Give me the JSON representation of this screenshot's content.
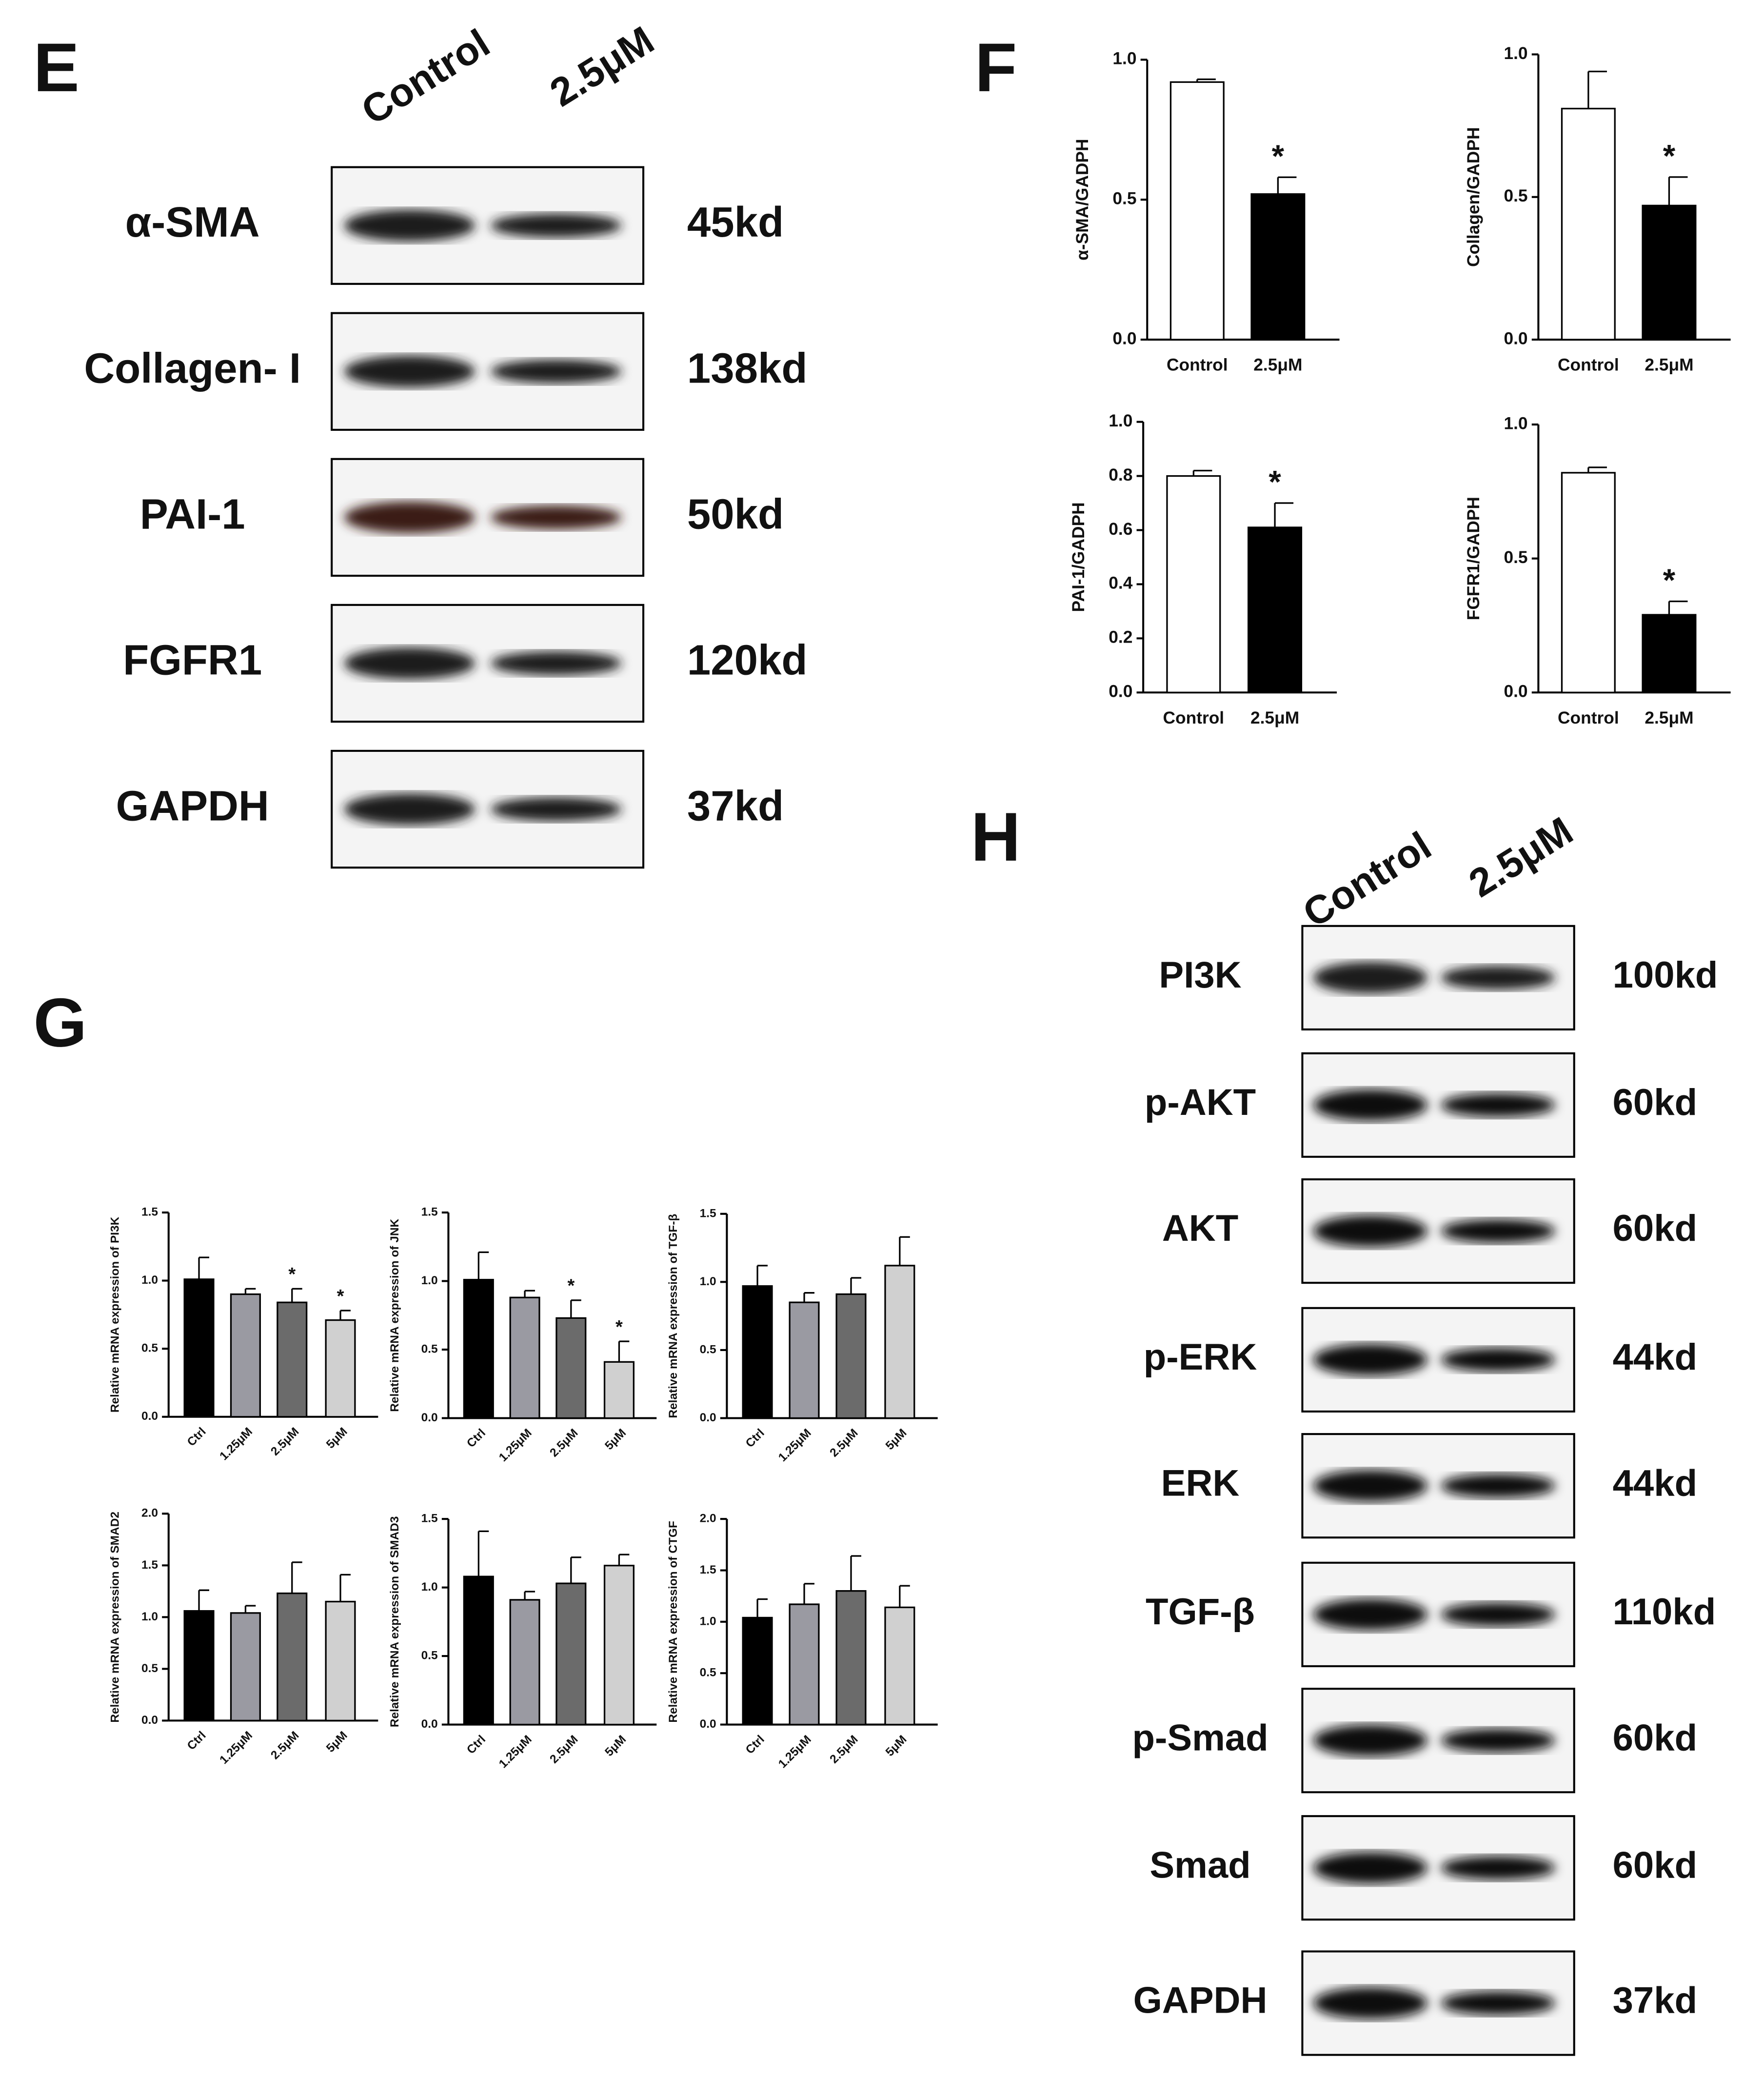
{
  "panel_labels": [
    "E",
    "F",
    "G",
    "H"
  ],
  "blots": [
    {
      "lanes": [
        "Control",
        "2.5μM"
      ],
      "rows": [
        {
          "protein": "α-SMA",
          "size": "45kd"
        },
        {
          "protein": "Collagen- I",
          "size": "138kd"
        },
        {
          "protein": "PAI-1",
          "size": "50kd"
        },
        {
          "protein": "FGFR1",
          "size": "120kd"
        },
        {
          "protein": "GAPDH",
          "size": "37kd"
        }
      ]
    },
    {
      "lanes": [
        "Control",
        "2.5μM"
      ],
      "rows": [
        {
          "protein": "PI3K",
          "size": "100kd"
        },
        {
          "protein": "p-AKT",
          "size": "60kd"
        },
        {
          "protein": "AKT",
          "size": "60kd"
        },
        {
          "protein": "p-ERK",
          "size": "44kd"
        },
        {
          "protein": "ERK",
          "size": "44kd"
        },
        {
          "protein": "TGF-β",
          "size": "110kd"
        },
        {
          "protein": "p-Smad",
          "size": "60kd"
        },
        {
          "protein": "Smad",
          "size": "60kd"
        },
        {
          "protein": "GAPDH",
          "size": "37kd"
        }
      ]
    }
  ],
  "chart_data": [
    {
      "type": "bar",
      "ylabel": "α-SMA/GADPH",
      "categories": [
        "Control",
        "2.5μM"
      ],
      "values": [
        0.92,
        0.52
      ],
      "errors": [
        0.01,
        0.06
      ],
      "colors": [
        "#ffffff",
        "#000000"
      ],
      "markers": [
        null,
        "*"
      ],
      "ylim": [
        0,
        1.0
      ],
      "yticks": [
        {
          "value": 0,
          "label": "0.0"
        },
        0.5,
        {
          "value": 1,
          "label": "1.0"
        }
      ]
    },
    {
      "type": "bar",
      "ylabel": "Collagen/GADPH",
      "categories": [
        "Control",
        "2.5μM"
      ],
      "values": [
        0.81,
        0.47
      ],
      "errors": [
        0.13,
        0.1
      ],
      "colors": [
        "#ffffff",
        "#000000"
      ],
      "markers": [
        null,
        "*"
      ],
      "ylim": [
        0,
        1.0
      ],
      "yticks": [
        {
          "value": 0,
          "label": "0.0"
        },
        0.5,
        {
          "value": 1,
          "label": "1.0"
        }
      ]
    },
    {
      "type": "bar",
      "ylabel": "PAI-1/GADPH",
      "categories": [
        "Control",
        "2.5μM"
      ],
      "values": [
        0.8,
        0.61
      ],
      "errors": [
        0.02,
        0.09
      ],
      "colors": [
        "#ffffff",
        "#000000"
      ],
      "markers": [
        null,
        "*"
      ],
      "ylim": [
        0,
        1.0
      ],
      "yticks": [
        {
          "value": 0,
          "label": "0.0"
        },
        0.2,
        0.4,
        0.6,
        0.8,
        {
          "value": 1,
          "label": "1.0"
        }
      ]
    },
    {
      "type": "bar",
      "ylabel": "FGFR1/GADPH",
      "categories": [
        "Control",
        "2.5μM"
      ],
      "values": [
        0.82,
        0.29
      ],
      "errors": [
        0.02,
        0.05
      ],
      "colors": [
        "#ffffff",
        "#000000"
      ],
      "markers": [
        null,
        "*"
      ],
      "ylim": [
        0,
        1.0
      ],
      "yticks": [
        {
          "value": 0,
          "label": "0.0"
        },
        0.5,
        {
          "value": 1,
          "label": "1.0"
        }
      ]
    },
    {
      "type": "bar",
      "ylabel": "Relative mRNA expression of PI3K",
      "categories": [
        "Ctrl",
        "1.25μM",
        "2.5μM",
        "5μM"
      ],
      "values": [
        1.01,
        0.9,
        0.84,
        0.71
      ],
      "errors": [
        0.16,
        0.04,
        0.1,
        0.07
      ],
      "colors": [
        "#000000",
        "#9a9aa2",
        "#6b6b6b",
        "#d0d0d0"
      ],
      "markers": [
        null,
        null,
        "*",
        "*"
      ],
      "ylim": [
        0,
        1.5
      ],
      "yticks": [
        {
          "value": 0,
          "label": "0.0"
        },
        0.5,
        {
          "value": 1,
          "label": "1.0"
        },
        1.5
      ]
    },
    {
      "type": "bar",
      "ylabel": "Relative mRNA expression of JNK",
      "categories": [
        "Ctrl",
        "1.25μM",
        "2.5μM",
        "5μM"
      ],
      "values": [
        1.01,
        0.88,
        0.73,
        0.41
      ],
      "errors": [
        0.2,
        0.05,
        0.13,
        0.15
      ],
      "colors": [
        "#000000",
        "#9a9aa2",
        "#6b6b6b",
        "#d0d0d0"
      ],
      "markers": [
        null,
        null,
        "*",
        "*"
      ],
      "ylim": [
        0,
        1.5
      ],
      "yticks": [
        {
          "value": 0,
          "label": "0.0"
        },
        0.5,
        {
          "value": 1,
          "label": "1.0"
        },
        1.5
      ]
    },
    {
      "type": "bar",
      "ylabel": "Relative mRNA expression of TGF-β",
      "categories": [
        "Ctrl",
        "1.25μM",
        "2.5μM",
        "5μM"
      ],
      "values": [
        0.97,
        0.85,
        0.91,
        1.12
      ],
      "errors": [
        0.15,
        0.07,
        0.12,
        0.21
      ],
      "colors": [
        "#000000",
        "#9a9aa2",
        "#6b6b6b",
        "#d0d0d0"
      ],
      "ylim": [
        0,
        1.5
      ],
      "yticks": [
        {
          "value": 0,
          "label": "0.0"
        },
        0.5,
        {
          "value": 1,
          "label": "1.0"
        },
        1.5
      ]
    },
    {
      "type": "bar",
      "ylabel": "Relative mRNA expression of SMAD2",
      "categories": [
        "Ctrl",
        "1.25μM",
        "2.5μM",
        "5μM"
      ],
      "values": [
        1.06,
        1.04,
        1.23,
        1.15
      ],
      "errors": [
        0.2,
        0.07,
        0.3,
        0.26
      ],
      "colors": [
        "#000000",
        "#9a9aa2",
        "#6b6b6b",
        "#d0d0d0"
      ],
      "ylim": [
        0,
        2.0
      ],
      "yticks": [
        {
          "value": 0,
          "label": "0.0"
        },
        0.5,
        {
          "value": 1,
          "label": "1.0"
        },
        1.5,
        {
          "value": 2,
          "label": "2.0"
        }
      ]
    },
    {
      "type": "bar",
      "ylabel": "Relative mRNA expression of SMAD3",
      "categories": [
        "Ctrl",
        "1.25μM",
        "2.5μM",
        "5μM"
      ],
      "values": [
        1.08,
        0.91,
        1.03,
        1.16
      ],
      "errors": [
        0.33,
        0.06,
        0.19,
        0.08
      ],
      "colors": [
        "#000000",
        "#9a9aa2",
        "#6b6b6b",
        "#d0d0d0"
      ],
      "ylim": [
        0,
        1.5
      ],
      "yticks": [
        {
          "value": 0,
          "label": "0.0"
        },
        0.5,
        {
          "value": 1,
          "label": "1.0"
        },
        1.5
      ]
    },
    {
      "type": "bar",
      "ylabel": "Relative mRNA expression of CTGF",
      "categories": [
        "Ctrl",
        "1.25μM",
        "2.5μM",
        "5μM"
      ],
      "values": [
        1.04,
        1.17,
        1.3,
        1.14
      ],
      "errors": [
        0.18,
        0.2,
        0.34,
        0.21
      ],
      "colors": [
        "#000000",
        "#9a9aa2",
        "#6b6b6b",
        "#d0d0d0"
      ],
      "ylim": [
        0,
        2.0
      ],
      "yticks": [
        {
          "value": 0,
          "label": "0.0"
        },
        0.5,
        {
          "value": 1,
          "label": "1.0"
        },
        1.5,
        {
          "value": 2,
          "label": "2.0"
        }
      ]
    }
  ]
}
